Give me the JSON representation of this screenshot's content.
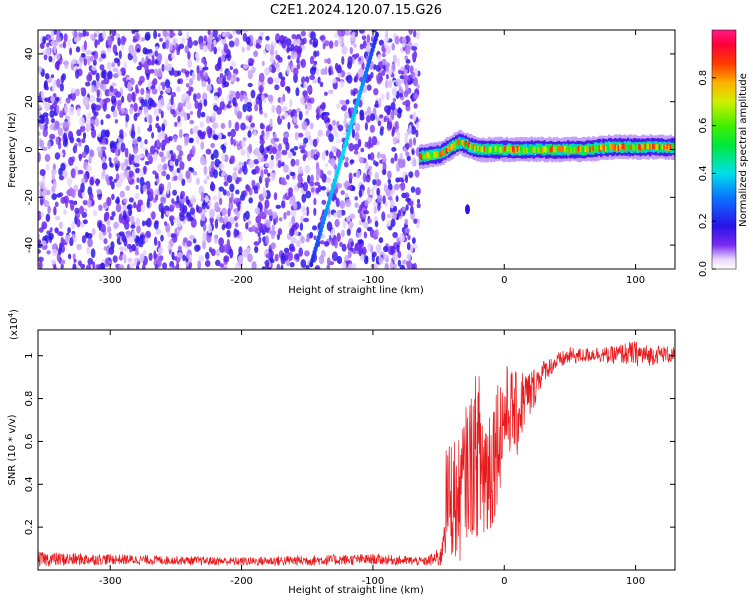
{
  "page_title": "C2E1.2024.120.07.15.G26",
  "chart_data": [
    {
      "type": "heatmap",
      "title": "C2E1.2024.120.07.15.G26",
      "xlabel": "Height of straight line (km)",
      "ylabel": "Frequency (Hz)",
      "xlim": [
        -355,
        130
      ],
      "ylim": [
        -50,
        50
      ],
      "x_ticks": [
        -300,
        -200,
        -100,
        0,
        100
      ],
      "y_ticks": [
        -40,
        -20,
        0,
        20,
        40
      ],
      "colorbar": {
        "label": "Normalized spectral amplitude",
        "range": [
          0.0,
          1.0
        ],
        "ticks": [
          0.0,
          0.2,
          0.4,
          0.6,
          0.8
        ]
      },
      "features": {
        "noise_region_x": [
          -355,
          -65
        ],
        "doppler_streak": {
          "x": [
            -147,
            -97
          ],
          "y": [
            -48,
            48
          ]
        },
        "carrier_line": {
          "x": [
            -65,
            -50,
            -35,
            -20,
            0,
            20,
            40,
            60,
            80,
            100,
            120,
            130
          ],
          "y": [
            -3,
            -2,
            3,
            0,
            0,
            0,
            0,
            0,
            1,
            1,
            1,
            1
          ],
          "peak_amplitude": 0.9
        },
        "small_blob": {
          "x": -28,
          "y": -25
        }
      },
      "grid": false
    },
    {
      "type": "line",
      "xlabel": "Height of straight line (km)",
      "ylabel": "SNR (10 * v/v)",
      "exponent_label": "(x10",
      "exponent_power": "4",
      "exponent_close": ")",
      "xlim": [
        -355,
        130
      ],
      "ylim": [
        0,
        1.12
      ],
      "x_ticks": [
        -300,
        -200,
        -100,
        0,
        100
      ],
      "y_ticks": [
        0.2,
        0.4,
        0.6,
        0.8,
        1
      ],
      "color": "#e8191c",
      "series": [
        {
          "x": [
            -355,
            -300,
            -250,
            -200,
            -150,
            -100,
            -60,
            -48,
            -45,
            -40,
            -35,
            -30,
            -25,
            -20,
            -15,
            -10,
            -5,
            0,
            5,
            10,
            15,
            20,
            25,
            30,
            40,
            50,
            60,
            70,
            80,
            90,
            100,
            110,
            120,
            130
          ],
          "y": [
            0.05,
            0.05,
            0.045,
            0.04,
            0.045,
            0.05,
            0.04,
            0.06,
            0.3,
            0.35,
            0.3,
            0.45,
            0.5,
            0.55,
            0.45,
            0.5,
            0.62,
            0.72,
            0.75,
            0.72,
            0.8,
            0.82,
            0.88,
            0.93,
            0.97,
            1.0,
            1.0,
            1.01,
            1.0,
            1.01,
            1.01,
            1.0,
            1.01,
            1.0
          ],
          "noise_amplitude": [
            0.035,
            0.025,
            0.02,
            0.02,
            0.025,
            0.025,
            0.02,
            0.05,
            0.25,
            0.3,
            0.3,
            0.3,
            0.35,
            0.4,
            0.4,
            0.35,
            0.3,
            0.25,
            0.2,
            0.2,
            0.15,
            0.12,
            0.08,
            0.05,
            0.04,
            0.04,
            0.035,
            0.035,
            0.04,
            0.05,
            0.06,
            0.05,
            0.04,
            0.04
          ]
        }
      ]
    }
  ]
}
